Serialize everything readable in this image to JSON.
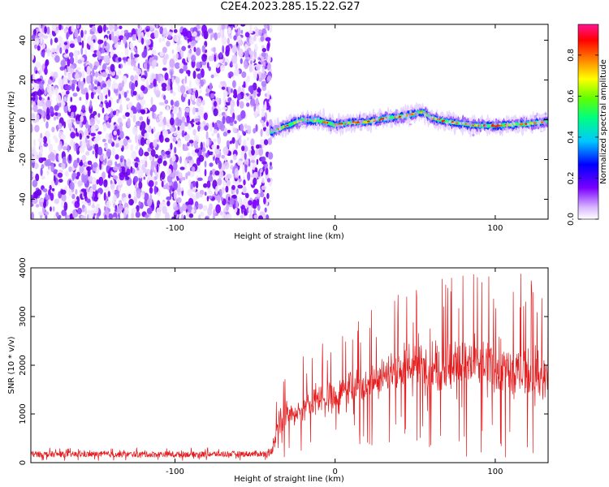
{
  "figure_title": "C2E4.2023.285.15.22.G27",
  "chart_data": [
    {
      "type": "heatmap",
      "title": "C2E4.2023.285.15.22.G27",
      "xlabel": "Height of straight line (km)",
      "ylabel": "Frequency (Hz)",
      "xlim": [
        -190,
        133
      ],
      "ylim": [
        -50,
        48
      ],
      "x_ticks": [
        -100,
        0,
        100
      ],
      "y_ticks": [
        -40,
        -20,
        0,
        20,
        40
      ],
      "colorbar": {
        "label": "Normalized spectral amplitude",
        "range": [
          0.0,
          0.95
        ],
        "ticks": [
          0.0,
          0.2,
          0.4,
          0.6,
          0.8
        ],
        "colormap": "rainbow",
        "colors": [
          "#ffffff",
          "#7a00ff",
          "#0000ff",
          "#00ffff",
          "#00ff00",
          "#ffff00",
          "#ff0000",
          "#ff1493"
        ]
      },
      "noise_region": {
        "x_range": [
          -190,
          -40
        ],
        "freq_range": [
          -50,
          48
        ],
        "amplitude": "low (0.05-0.3)"
      },
      "signal_track": {
        "x": [
          -40,
          -30,
          -20,
          -10,
          0,
          10,
          20,
          30,
          40,
          50,
          55,
          60,
          70,
          80,
          90,
          100,
          110,
          120,
          133
        ],
        "frequency": [
          -6,
          -3,
          0,
          -0.5,
          -2.5,
          -1.5,
          -1,
          0.5,
          1.5,
          3,
          4,
          1,
          -1,
          -2,
          -3,
          -3,
          -2.5,
          -2,
          -1
        ],
        "peak_amplitude": 0.9
      }
    },
    {
      "type": "line",
      "xlabel": "Height of straight line (km)",
      "ylabel": "SNR (10 * v/v)",
      "xlim": [
        -190,
        133
      ],
      "ylim": [
        0,
        4000
      ],
      "x_ticks": [
        -100,
        0,
        100
      ],
      "y_ticks": [
        0,
        1000,
        2000,
        3000,
        4000
      ],
      "color": "#e41a1c",
      "series": [
        {
          "x": [
            -190,
            -150,
            -100,
            -50,
            -40,
            -35,
            -30,
            -20,
            -10,
            0,
            10,
            20,
            30,
            40,
            50,
            60,
            70,
            80,
            90,
            100,
            110,
            120,
            133
          ],
          "values": [
            170,
            170,
            170,
            180,
            190,
            900,
            1000,
            1100,
            1300,
            1350,
            1500,
            1650,
            1800,
            1900,
            2000,
            2000,
            1950,
            2050,
            2000,
            1950,
            1850,
            1900,
            1750
          ],
          "spread": [
            60,
            60,
            60,
            60,
            60,
            400,
            450,
            500,
            550,
            550,
            600,
            650,
            750,
            800,
            850,
            950,
            1000,
            1000,
            1000,
            950,
            950,
            900,
            900
          ],
          "max": [
            330,
            320,
            330,
            330,
            350,
            1800,
            2000,
            2200,
            2500,
            2600,
            2900,
            3100,
            3300,
            3500,
            3600,
            3900,
            3950,
            3950,
            3900,
            3950,
            4000,
            3850,
            3650
          ]
        }
      ]
    }
  ]
}
